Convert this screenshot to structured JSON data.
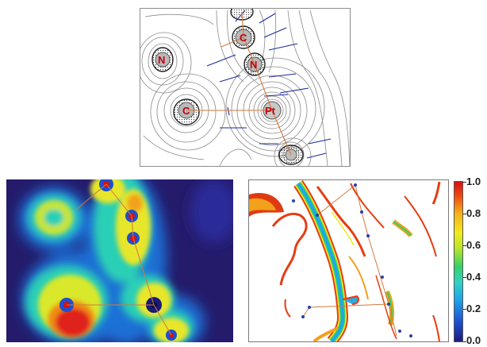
{
  "figure": {
    "top_panel": {
      "atoms": [
        {
          "label": "N"
        },
        {
          "label": "C"
        },
        {
          "label": "N"
        },
        {
          "label": "C"
        },
        {
          "label": "Pt"
        }
      ]
    },
    "colorbar": {
      "ticks": [
        "1.0",
        "0.8",
        "0.6",
        "0.4",
        "0.2",
        "0.0"
      ],
      "colors": {
        "low": "#1a1a7a",
        "mid_low": "#1fa8e8",
        "mid": "#35d168",
        "mid_high": "#f2ea1c",
        "high": "#d81010"
      }
    },
    "colors": {
      "bond_path": "#d07a3c",
      "zero_flux_lines": "#1b2a9c",
      "contours": "#8a8a8a",
      "atom_label": "#c0000f"
    }
  }
}
